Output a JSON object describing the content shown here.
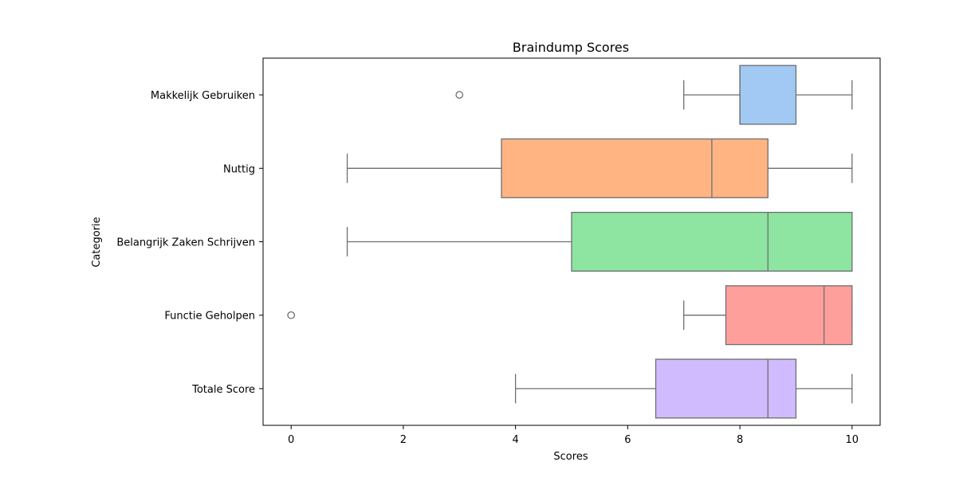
{
  "chart_data": {
    "type": "boxplot",
    "orientation": "horizontal",
    "title": "Braindump Scores",
    "xlabel": "Scores",
    "ylabel": "Categorie",
    "xlim": [
      -0.5,
      10.5
    ],
    "xticks": [
      0,
      2,
      4,
      6,
      8,
      10
    ],
    "grid": false,
    "categories": [
      "Makkelijk Gebruiken",
      "Nuttig",
      "Belangrijk Zaken Schrijven",
      "Functie Geholpen",
      "Totale Score"
    ],
    "boxes": [
      {
        "category": "Makkelijk Gebruiken",
        "whisker_low": 7,
        "q1": 8,
        "median": 8,
        "q3": 9,
        "whisker_high": 10,
        "outliers": [
          3
        ],
        "color": "#a1c9f4"
      },
      {
        "category": "Nuttig",
        "whisker_low": 1,
        "q1": 3.75,
        "median": 7.5,
        "q3": 8.5,
        "whisker_high": 10,
        "outliers": [],
        "color": "#ffb482"
      },
      {
        "category": "Belangrijk Zaken Schrijven",
        "whisker_low": 1,
        "q1": 5,
        "median": 8.5,
        "q3": 10,
        "whisker_high": 10,
        "outliers": [],
        "color": "#8de5a1"
      },
      {
        "category": "Functie Geholpen",
        "whisker_low": 7,
        "q1": 7.75,
        "median": 9.5,
        "q3": 10,
        "whisker_high": 10,
        "outliers": [
          0
        ],
        "color": "#ff9f9b"
      },
      {
        "category": "Totale Score",
        "whisker_low": 4,
        "q1": 6.5,
        "median": 8.5,
        "q3": 9,
        "whisker_high": 10,
        "outliers": [],
        "color": "#d0bbff"
      }
    ]
  }
}
